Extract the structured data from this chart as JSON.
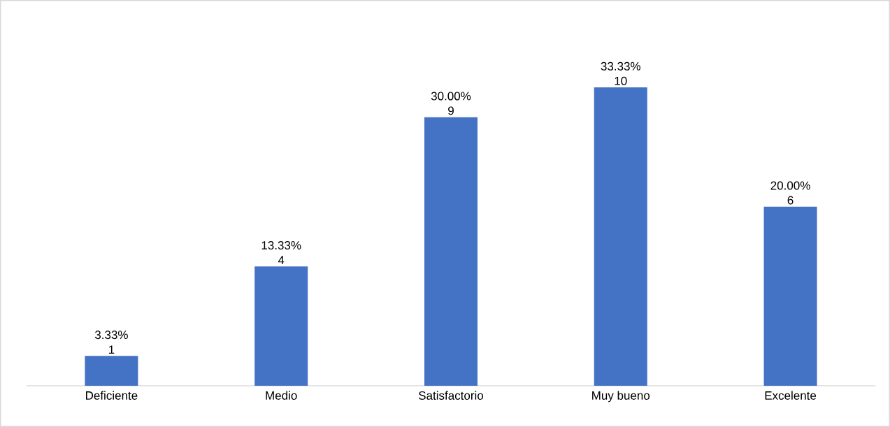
{
  "chart_data": {
    "type": "bar",
    "categories": [
      "Deficiente",
      "Medio",
      "Satisfactorio",
      "Muy bueno",
      "Excelente"
    ],
    "values": [
      3.33,
      13.33,
      30.0,
      33.33,
      20.0
    ],
    "value_labels": [
      "3.33%",
      "13.33%",
      "30.00%",
      "33.33%",
      "20.00%"
    ],
    "annotations": [
      {
        "text": "1",
        "x": "Deficiente",
        "y": 3.33
      },
      {
        "text": "4",
        "x": "Medio",
        "y": 13.33
      },
      {
        "text": "9",
        "x": "Satisfactorio",
        "y": 30.0
      },
      {
        "text": "10",
        "x": "Muy bueno",
        "y": 33.33
      },
      {
        "text": "6",
        "x": "Excelente",
        "y": 20.0
      }
    ],
    "color": "#4472c4"
  }
}
